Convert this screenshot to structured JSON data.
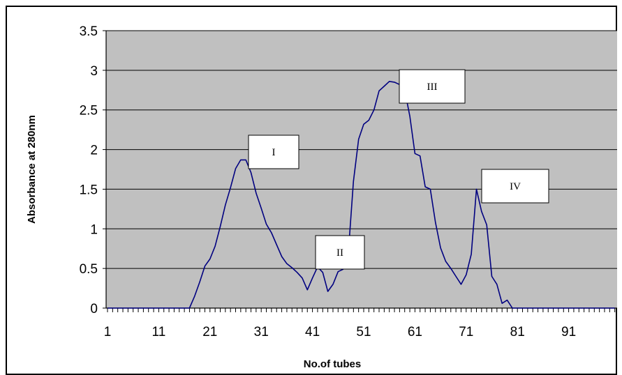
{
  "chart_data": {
    "type": "line",
    "xlabel": "No.of tubes",
    "ylabel": "Absorbance at 280nm",
    "ylim": [
      0,
      3.5
    ],
    "xlim": [
      1,
      100
    ],
    "y_ticks": [
      "0",
      "0.5",
      "1",
      "1.5",
      "2",
      "2.5",
      "3",
      "3.5"
    ],
    "x_tick_labels": [
      "1",
      "11",
      "21",
      "31",
      "41",
      "51",
      "61",
      "71",
      "81",
      "91"
    ],
    "x_tick_values": [
      1,
      11,
      21,
      31,
      41,
      51,
      61,
      71,
      81,
      91
    ],
    "grid": true,
    "legend": "none",
    "plot_background": "#c0c0c0",
    "series": [
      {
        "color": "#000080",
        "x": [
          1,
          2,
          3,
          4,
          5,
          6,
          7,
          8,
          9,
          10,
          11,
          12,
          13,
          14,
          15,
          16,
          17,
          18,
          19,
          20,
          21,
          22,
          23,
          24,
          25,
          26,
          27,
          28,
          29,
          30,
          31,
          32,
          33,
          34,
          35,
          36,
          37,
          38,
          39,
          40,
          41,
          42,
          43,
          44,
          45,
          46,
          47,
          48,
          49,
          50,
          51,
          52,
          53,
          54,
          55,
          56,
          57,
          58,
          59,
          60,
          61,
          62,
          63,
          64,
          65,
          66,
          67,
          68,
          69,
          70,
          71,
          72,
          73,
          74,
          75,
          76,
          77,
          78,
          79,
          80,
          81,
          82,
          83,
          84,
          85,
          86,
          87,
          88,
          89,
          90,
          91,
          92,
          93,
          94,
          95,
          96,
          97,
          98,
          99,
          100
        ],
        "values": [
          0,
          0,
          0,
          0,
          0,
          0,
          0,
          0,
          0,
          0,
          0,
          0,
          0,
          0,
          0,
          0,
          0,
          0.15,
          0.33,
          0.53,
          0.62,
          0.78,
          1.03,
          1.3,
          1.52,
          1.76,
          1.87,
          1.87,
          1.71,
          1.45,
          1.26,
          1.06,
          0.95,
          0.8,
          0.65,
          0.56,
          0.51,
          0.45,
          0.38,
          0.23,
          0.38,
          0.52,
          0.45,
          0.21,
          0.3,
          0.46,
          0.49,
          0.7,
          1.6,
          2.13,
          2.32,
          2.37,
          2.5,
          2.74,
          2.8,
          2.86,
          2.85,
          2.82,
          2.75,
          2.42,
          1.95,
          1.92,
          1.53,
          1.5,
          1.08,
          0.76,
          0.59,
          0.5,
          0.4,
          0.3,
          0.42,
          0.68,
          1.5,
          1.22,
          1.05,
          0.4,
          0.3,
          0.06,
          0.1,
          0,
          0,
          0,
          0,
          0,
          0,
          0,
          0,
          0,
          0,
          0,
          0,
          0,
          0,
          0,
          0,
          0,
          0,
          0,
          0,
          0
        ]
      }
    ],
    "annotations": [
      {
        "label": "I",
        "x": 27,
        "y": 1.87
      },
      {
        "label": "II",
        "x": 42,
        "y": 0.52
      },
      {
        "label": "III",
        "x": 57,
        "y": 2.86
      },
      {
        "label": "IV",
        "x": 73,
        "y": 1.5
      }
    ]
  }
}
